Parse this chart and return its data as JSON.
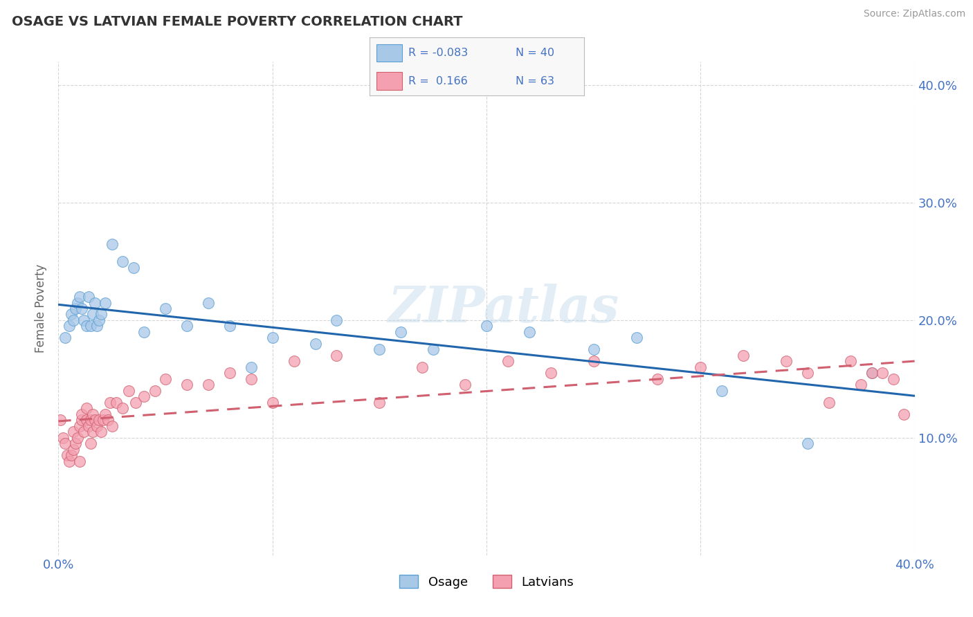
{
  "title": "OSAGE VS LATVIAN FEMALE POVERTY CORRELATION CHART",
  "source": "Source: ZipAtlas.com",
  "ylabel": "Female Poverty",
  "xlim": [
    0.0,
    0.4
  ],
  "ylim": [
    0.0,
    0.42
  ],
  "color_osage_fill": "#a8c8e8",
  "color_osage_edge": "#5a9fd4",
  "color_line_osage": "#2166ac",
  "color_latvian_fill": "#f4a0b0",
  "color_latvian_edge": "#d06070",
  "color_line_latvian": "#d06070",
  "background_color": "#ffffff",
  "grid_color": "#cccccc",
  "watermark": "ZIPatlas",
  "osage_x": [
    0.003,
    0.005,
    0.006,
    0.007,
    0.008,
    0.009,
    0.01,
    0.011,
    0.012,
    0.013,
    0.014,
    0.015,
    0.016,
    0.017,
    0.018,
    0.019,
    0.02,
    0.022,
    0.025,
    0.03,
    0.035,
    0.04,
    0.05,
    0.06,
    0.07,
    0.08,
    0.09,
    0.1,
    0.12,
    0.13,
    0.15,
    0.16,
    0.175,
    0.2,
    0.22,
    0.25,
    0.27,
    0.31,
    0.35,
    0.38
  ],
  "osage_y": [
    0.185,
    0.195,
    0.205,
    0.2,
    0.21,
    0.215,
    0.22,
    0.21,
    0.2,
    0.195,
    0.22,
    0.195,
    0.205,
    0.215,
    0.195,
    0.2,
    0.205,
    0.215,
    0.265,
    0.25,
    0.245,
    0.19,
    0.21,
    0.195,
    0.215,
    0.195,
    0.16,
    0.185,
    0.18,
    0.2,
    0.175,
    0.19,
    0.175,
    0.195,
    0.19,
    0.175,
    0.185,
    0.14,
    0.095,
    0.155
  ],
  "latvian_x": [
    0.001,
    0.002,
    0.003,
    0.004,
    0.005,
    0.006,
    0.007,
    0.007,
    0.008,
    0.009,
    0.01,
    0.01,
    0.011,
    0.011,
    0.012,
    0.013,
    0.013,
    0.014,
    0.015,
    0.015,
    0.016,
    0.016,
    0.017,
    0.018,
    0.019,
    0.02,
    0.021,
    0.022,
    0.023,
    0.024,
    0.025,
    0.027,
    0.03,
    0.033,
    0.036,
    0.04,
    0.045,
    0.05,
    0.06,
    0.07,
    0.08,
    0.09,
    0.1,
    0.11,
    0.13,
    0.15,
    0.17,
    0.19,
    0.21,
    0.23,
    0.25,
    0.28,
    0.3,
    0.32,
    0.34,
    0.35,
    0.36,
    0.37,
    0.375,
    0.38,
    0.385,
    0.39,
    0.395
  ],
  "latvian_y": [
    0.115,
    0.1,
    0.095,
    0.085,
    0.08,
    0.085,
    0.09,
    0.105,
    0.095,
    0.1,
    0.08,
    0.11,
    0.115,
    0.12,
    0.105,
    0.115,
    0.125,
    0.11,
    0.095,
    0.115,
    0.105,
    0.12,
    0.115,
    0.11,
    0.115,
    0.105,
    0.115,
    0.12,
    0.115,
    0.13,
    0.11,
    0.13,
    0.125,
    0.14,
    0.13,
    0.135,
    0.14,
    0.15,
    0.145,
    0.145,
    0.155,
    0.15,
    0.13,
    0.165,
    0.17,
    0.13,
    0.16,
    0.145,
    0.165,
    0.155,
    0.165,
    0.15,
    0.16,
    0.17,
    0.165,
    0.155,
    0.13,
    0.165,
    0.145,
    0.155,
    0.155,
    0.15,
    0.12
  ]
}
